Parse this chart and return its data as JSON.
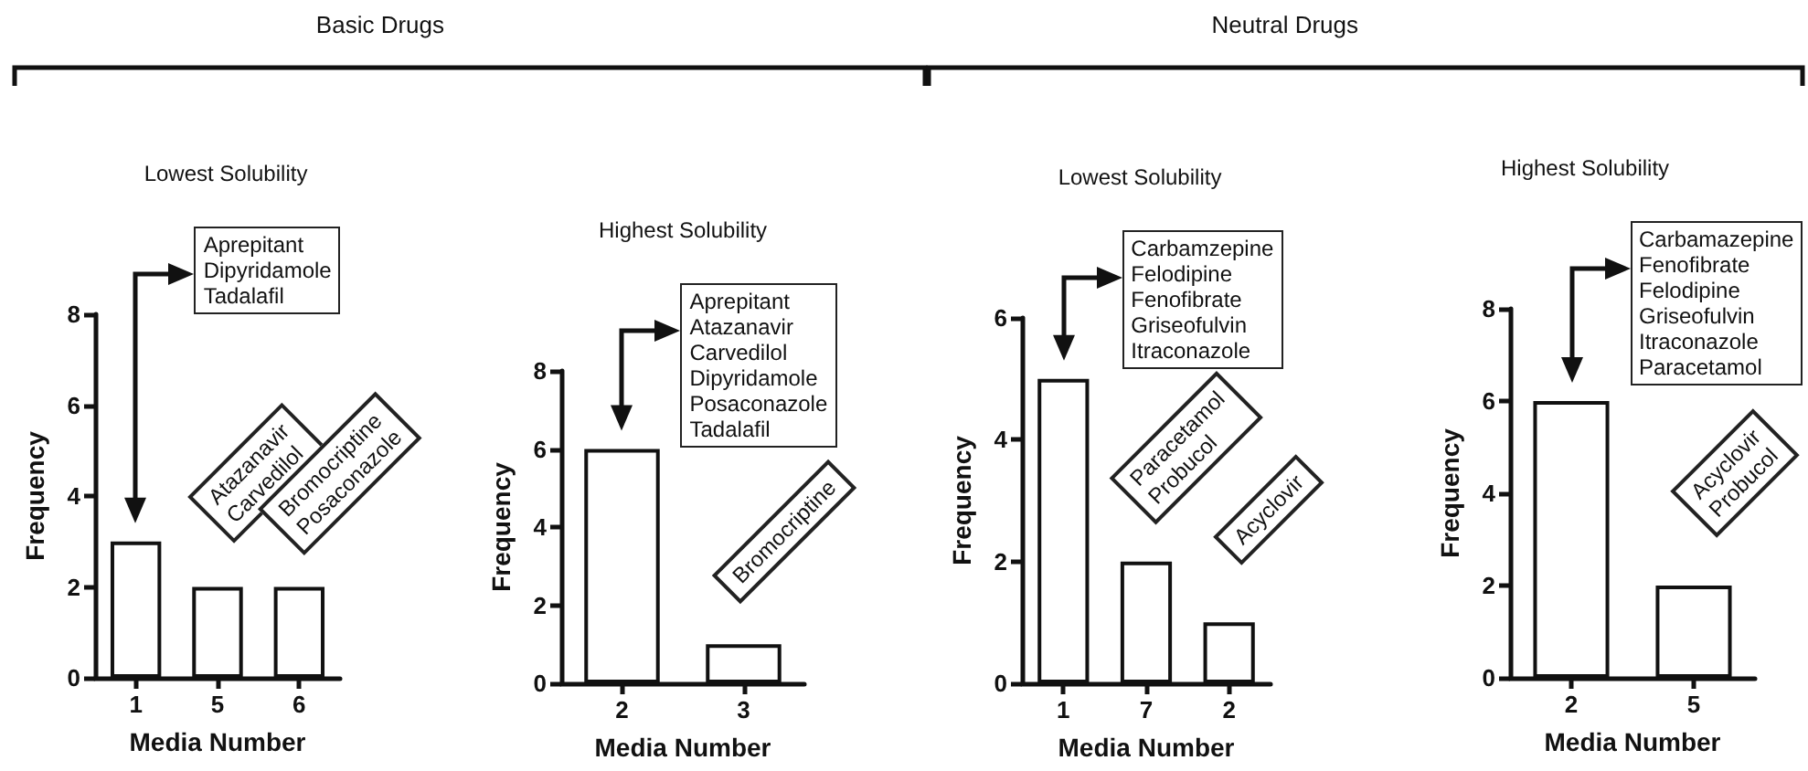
{
  "chart_data": [
    {
      "type": "bar",
      "title": "Lowest Solubility",
      "subtitle": "Basic Drugs",
      "xlabel": "Media Number",
      "ylabel": "Frequency",
      "categories": [
        "1",
        "5",
        "6"
      ],
      "values": [
        3,
        2,
        2
      ],
      "color": "#ffffff",
      "ylim": [
        0,
        8
      ],
      "yticks": [
        0,
        2,
        4,
        6,
        8
      ],
      "annotations": [
        "Aprepitant\nDipyridamole\nTadalafil",
        "Atazanavir\nCarvedilol",
        "Bromocriptine\nPosaconazole"
      ]
    },
    {
      "type": "bar",
      "title": "Highest Solubility",
      "xlabel": "Media Number",
      "ylabel": "Frequency",
      "categories": [
        "2",
        "3"
      ],
      "values": [
        6,
        1
      ],
      "color": "#ffffff",
      "ylim": [
        0,
        8
      ],
      "yticks": [
        0,
        2,
        4,
        6,
        8
      ],
      "annotations": [
        "Aprepitant\nAtazanavir\nCarvedilol\nDipyridamole\nPosaconazole\nTadalafil",
        "Bromocriptine"
      ]
    },
    {
      "type": "bar",
      "title": "Lowest Solubility",
      "subtitle": "Neutral Drugs",
      "xlabel": "Media Number",
      "ylabel": "Frequency",
      "categories": [
        "1",
        "7",
        "2"
      ],
      "values": [
        5,
        2,
        1
      ],
      "color": "#ffffff",
      "ylim": [
        0,
        6
      ],
      "yticks": [
        0,
        2,
        4,
        6
      ],
      "annotations": [
        "Carbamzepine\nFelodipine\nFenofibrate\nGriseofulvin\nItraconazole",
        "Paracetamol\nProbucol",
        "Acyclovir"
      ]
    },
    {
      "type": "bar",
      "title": "Highest Solubility",
      "xlabel": "Media Number",
      "ylabel": "Frequency",
      "categories": [
        "2",
        "5"
      ],
      "values": [
        6,
        2
      ],
      "color": "#ffffff",
      "ylim": [
        0,
        8
      ],
      "yticks": [
        0,
        2,
        4,
        6,
        8
      ],
      "annotations": [
        "Carbamazepine\nFenofibrate\nFelodipine\nGriseofulvin\nItraconazole\nParacetamol",
        "Acyclovir\nProbucol"
      ]
    }
  ]
}
